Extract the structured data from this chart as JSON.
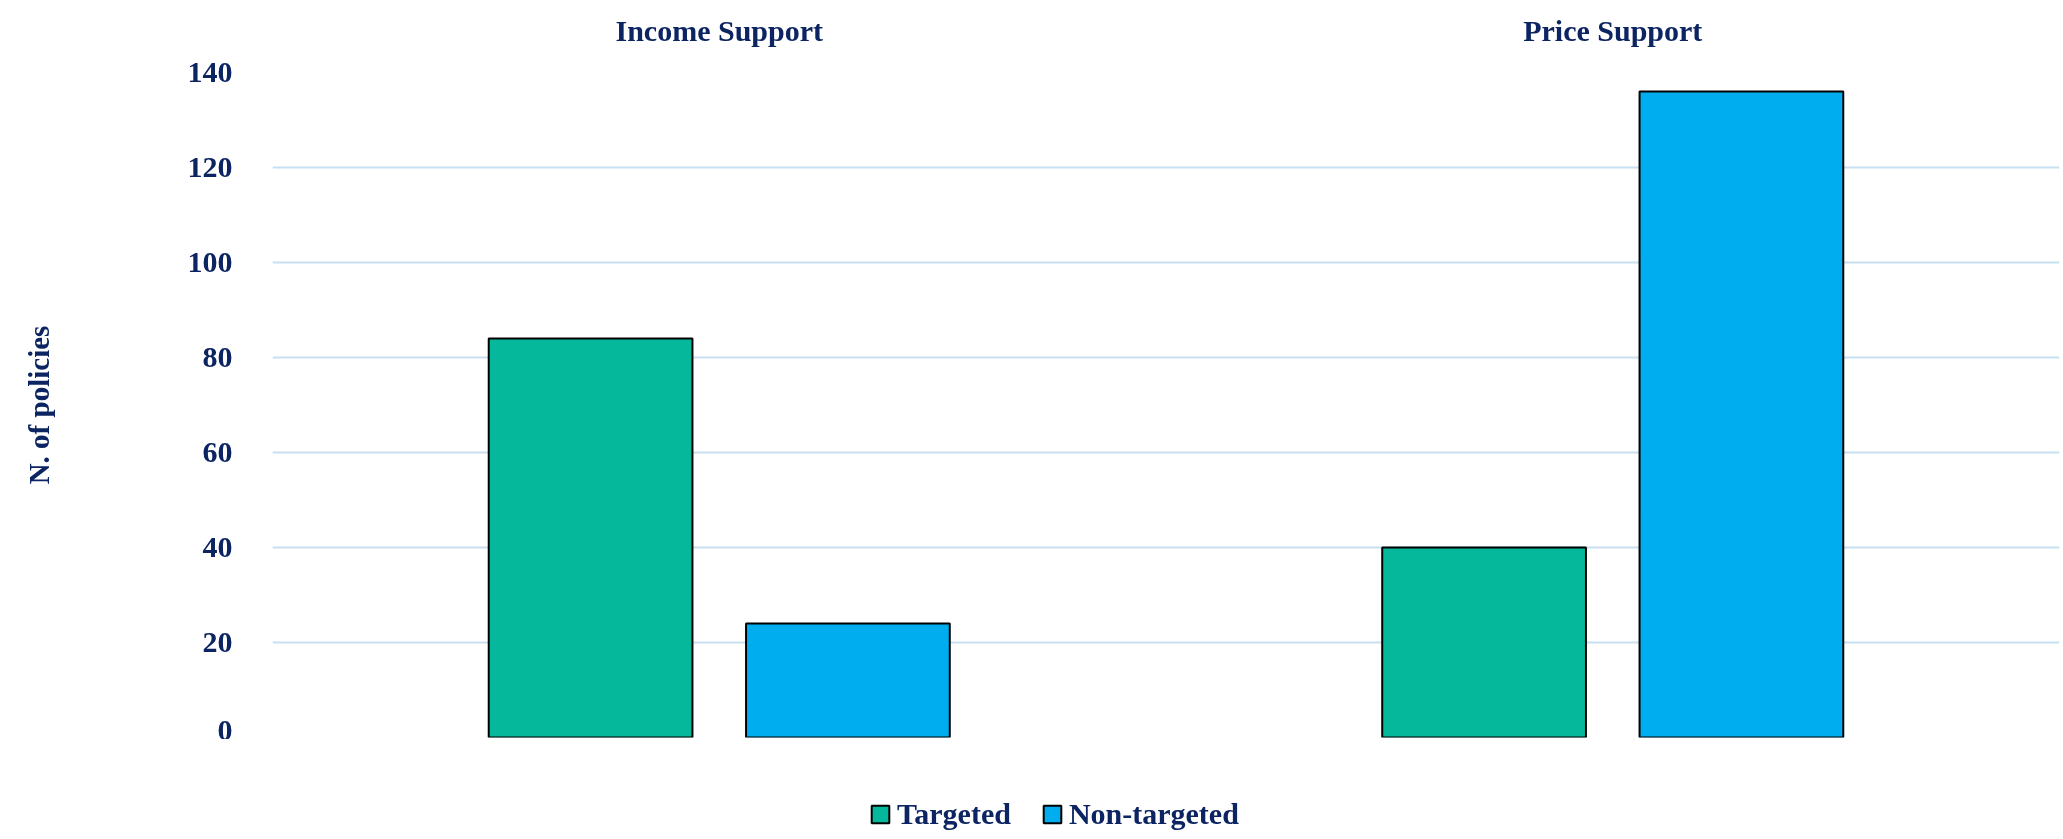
{
  "chart_data": {
    "type": "bar",
    "categories": [
      "Income Support",
      "Price Support"
    ],
    "ylabel": "N. of policies",
    "series": [
      {
        "name": "Targeted",
        "color": "#05b89c",
        "values": [
          84,
          40
        ]
      },
      {
        "name": "Non-targeted",
        "color": "#00aeef",
        "values": [
          24,
          136
        ]
      }
    ],
    "ylim": [
      0,
      140
    ],
    "yticks": [
      0,
      20,
      40,
      60,
      80,
      100,
      120,
      140
    ],
    "grid": "y",
    "legend": "bottom"
  }
}
